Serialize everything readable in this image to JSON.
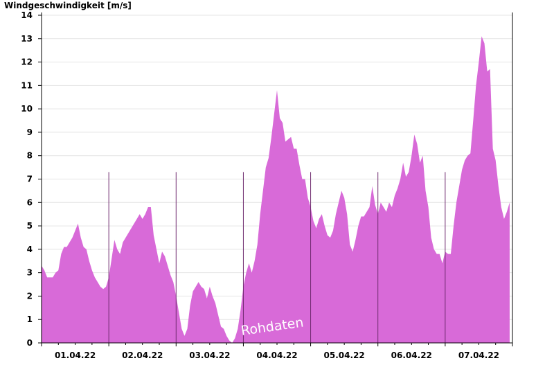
{
  "chart_data": {
    "type": "area",
    "title": "Windgeschwindigkeit [m/s]",
    "ylim": [
      0,
      14
    ],
    "y_ticks": [
      0,
      1,
      2,
      3,
      4,
      5,
      6,
      7,
      8,
      9,
      10,
      11,
      12,
      13,
      14
    ],
    "x_range": [
      "2022-04-01T00:00",
      "2022-04-08T00:00"
    ],
    "x_tick_labels": [
      "01.04.22",
      "02.04.22",
      "03.04.22",
      "04.04.22",
      "05.04.22",
      "06.04.22",
      "07.04.22"
    ],
    "grid": true,
    "fill_color": "#d86ad8",
    "watermark": "Rohdaten",
    "series": [
      {
        "x": [
          "2022-04-01T00:00",
          "2022-04-01T01:00",
          "2022-04-01T02:00",
          "2022-04-01T03:00",
          "2022-04-01T04:00",
          "2022-04-01T05:00",
          "2022-04-01T06:00",
          "2022-04-01T07:00",
          "2022-04-01T08:00",
          "2022-04-01T09:00",
          "2022-04-01T10:00",
          "2022-04-01T11:00",
          "2022-04-01T12:00",
          "2022-04-01T13:00",
          "2022-04-01T14:00",
          "2022-04-01T15:00",
          "2022-04-01T16:00",
          "2022-04-01T17:00",
          "2022-04-01T18:00",
          "2022-04-01T19:00",
          "2022-04-01T20:00",
          "2022-04-01T21:00",
          "2022-04-01T22:00",
          "2022-04-01T23:00",
          "2022-04-02T00:00",
          "2022-04-02T01:00",
          "2022-04-02T02:00",
          "2022-04-02T03:00",
          "2022-04-02T04:00",
          "2022-04-02T05:00",
          "2022-04-02T06:00",
          "2022-04-02T07:00",
          "2022-04-02T08:00",
          "2022-04-02T09:00",
          "2022-04-02T10:00",
          "2022-04-02T11:00",
          "2022-04-02T12:00",
          "2022-04-02T13:00",
          "2022-04-02T14:00",
          "2022-04-02T15:00",
          "2022-04-02T16:00",
          "2022-04-02T17:00",
          "2022-04-02T18:00",
          "2022-04-02T19:00",
          "2022-04-02T20:00",
          "2022-04-02T21:00",
          "2022-04-02T22:00",
          "2022-04-02T23:00",
          "2022-04-03T00:00",
          "2022-04-03T01:00",
          "2022-04-03T02:00",
          "2022-04-03T03:00",
          "2022-04-03T04:00",
          "2022-04-03T05:00",
          "2022-04-03T06:00",
          "2022-04-03T07:00",
          "2022-04-03T08:00",
          "2022-04-03T09:00",
          "2022-04-03T10:00",
          "2022-04-03T11:00",
          "2022-04-03T12:00",
          "2022-04-03T13:00",
          "2022-04-03T14:00",
          "2022-04-03T15:00",
          "2022-04-03T16:00",
          "2022-04-03T17:00",
          "2022-04-03T18:00",
          "2022-04-03T19:00",
          "2022-04-03T20:00",
          "2022-04-03T21:00",
          "2022-04-03T22:00",
          "2022-04-03T23:00",
          "2022-04-04T00:00",
          "2022-04-04T01:00",
          "2022-04-04T02:00",
          "2022-04-04T03:00",
          "2022-04-04T04:00",
          "2022-04-04T05:00",
          "2022-04-04T06:00",
          "2022-04-04T07:00",
          "2022-04-04T08:00",
          "2022-04-04T09:00",
          "2022-04-04T10:00",
          "2022-04-04T11:00",
          "2022-04-04T12:00",
          "2022-04-04T13:00",
          "2022-04-04T14:00",
          "2022-04-04T15:00",
          "2022-04-04T16:00",
          "2022-04-04T17:00",
          "2022-04-04T18:00",
          "2022-04-04T19:00",
          "2022-04-04T20:00",
          "2022-04-04T21:00",
          "2022-04-04T22:00",
          "2022-04-04T23:00",
          "2022-04-05T00:00",
          "2022-04-05T01:00",
          "2022-04-05T02:00",
          "2022-04-05T03:00",
          "2022-04-05T04:00",
          "2022-04-05T05:00",
          "2022-04-05T06:00",
          "2022-04-05T07:00",
          "2022-04-05T08:00",
          "2022-04-05T09:00",
          "2022-04-05T10:00",
          "2022-04-05T11:00",
          "2022-04-05T12:00",
          "2022-04-05T13:00",
          "2022-04-05T14:00",
          "2022-04-05T15:00",
          "2022-04-05T16:00",
          "2022-04-05T17:00",
          "2022-04-05T18:00",
          "2022-04-05T19:00",
          "2022-04-05T20:00",
          "2022-04-05T21:00",
          "2022-04-05T22:00",
          "2022-04-05T23:00",
          "2022-04-06T00:00",
          "2022-04-06T01:00",
          "2022-04-06T02:00",
          "2022-04-06T03:00",
          "2022-04-06T04:00",
          "2022-04-06T05:00",
          "2022-04-06T06:00",
          "2022-04-06T07:00",
          "2022-04-06T08:00",
          "2022-04-06T09:00",
          "2022-04-06T10:00",
          "2022-04-06T11:00",
          "2022-04-06T12:00",
          "2022-04-06T13:00",
          "2022-04-06T14:00",
          "2022-04-06T15:00",
          "2022-04-06T16:00",
          "2022-04-06T17:00",
          "2022-04-06T18:00",
          "2022-04-06T19:00",
          "2022-04-06T20:00",
          "2022-04-06T21:00",
          "2022-04-06T22:00",
          "2022-04-06T23:00",
          "2022-04-07T00:00",
          "2022-04-07T01:00",
          "2022-04-07T02:00",
          "2022-04-07T03:00",
          "2022-04-07T04:00",
          "2022-04-07T05:00",
          "2022-04-07T06:00",
          "2022-04-07T07:00",
          "2022-04-07T08:00",
          "2022-04-07T09:00",
          "2022-04-07T10:00",
          "2022-04-07T11:00",
          "2022-04-07T12:00",
          "2022-04-07T13:00",
          "2022-04-07T14:00",
          "2022-04-07T15:00",
          "2022-04-07T16:00",
          "2022-04-07T17:00",
          "2022-04-07T18:00",
          "2022-04-07T19:00",
          "2022-04-07T20:00",
          "2022-04-07T21:00",
          "2022-04-07T22:00",
          "2022-04-07T23:00"
        ],
        "values": [
          3.3,
          3.1,
          2.8,
          2.8,
          2.8,
          3.0,
          3.1,
          3.8,
          4.1,
          4.1,
          4.3,
          4.5,
          4.8,
          5.1,
          4.5,
          4.1,
          4.0,
          3.5,
          3.1,
          2.8,
          2.6,
          2.4,
          2.3,
          2.4,
          2.8,
          3.6,
          4.4,
          4.0,
          3.8,
          4.3,
          4.5,
          4.7,
          4.9,
          5.1,
          5.3,
          5.5,
          5.3,
          5.5,
          5.8,
          5.8,
          4.6,
          4.0,
          3.4,
          3.9,
          3.7,
          3.3,
          2.9,
          2.6,
          2.0,
          1.3,
          0.6,
          0.3,
          0.6,
          1.6,
          2.2,
          2.4,
          2.6,
          2.4,
          2.3,
          1.9,
          2.4,
          2.0,
          1.7,
          1.2,
          0.7,
          0.6,
          0.3,
          0.1,
          0.0,
          0.2,
          0.6,
          1.4,
          2.4,
          3.0,
          3.4,
          3.0,
          3.5,
          4.2,
          5.5,
          6.5,
          7.5,
          7.9,
          8.8,
          9.8,
          10.8,
          9.6,
          9.4,
          8.6,
          8.7,
          8.8,
          8.3,
          8.3,
          7.6,
          7.0,
          7.0,
          6.2,
          5.8,
          5.2,
          4.9,
          5.3,
          5.5,
          5.0,
          4.6,
          4.5,
          4.8,
          5.5,
          6.0,
          6.5,
          6.2,
          5.5,
          4.2,
          3.9,
          4.4,
          5.0,
          5.4,
          5.4,
          5.6,
          5.8,
          6.7,
          5.9,
          5.5,
          6.0,
          5.8,
          5.6,
          6.0,
          5.8,
          6.3,
          6.6,
          7.0,
          7.7,
          7.1,
          7.3,
          8.0,
          8.9,
          8.5,
          7.7,
          8.0,
          6.5,
          5.8,
          4.5,
          4.0,
          3.8,
          3.8,
          3.4,
          3.9,
          3.8,
          3.8,
          5.0,
          6.0,
          6.7,
          7.4,
          7.8,
          8.0,
          8.1,
          9.5,
          11.0,
          12.0,
          13.1,
          12.8,
          11.6,
          11.7,
          8.3,
          7.8,
          6.7,
          5.8,
          5.3,
          5.6,
          6.0
        ]
      }
    ]
  }
}
